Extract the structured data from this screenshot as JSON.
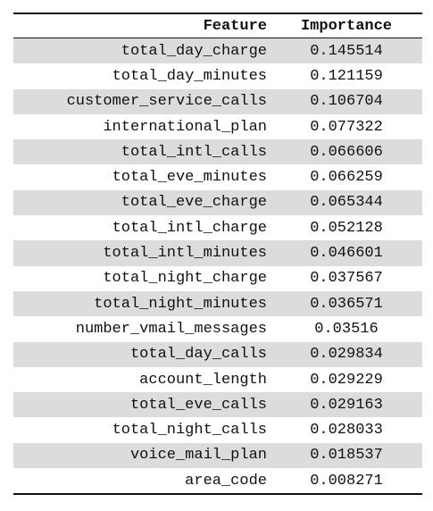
{
  "table": {
    "headers": {
      "feature": "Feature",
      "importance": "Importance"
    },
    "rows": [
      {
        "feature": "total_day_charge",
        "importance": "0.145514"
      },
      {
        "feature": "total_day_minutes",
        "importance": "0.121159"
      },
      {
        "feature": "customer_service_calls",
        "importance": "0.106704"
      },
      {
        "feature": "international_plan",
        "importance": "0.077322"
      },
      {
        "feature": "total_intl_calls",
        "importance": "0.066606"
      },
      {
        "feature": "total_eve_minutes",
        "importance": "0.066259"
      },
      {
        "feature": "total_eve_charge",
        "importance": "0.065344"
      },
      {
        "feature": "total_intl_charge",
        "importance": "0.052128"
      },
      {
        "feature": "total_intl_minutes",
        "importance": "0.046601"
      },
      {
        "feature": "total_night_charge",
        "importance": "0.037567"
      },
      {
        "feature": "total_night_minutes",
        "importance": "0.036571"
      },
      {
        "feature": "number_vmail_messages",
        "importance": "0.03516"
      },
      {
        "feature": "total_day_calls",
        "importance": "0.029834"
      },
      {
        "feature": "account_length",
        "importance": "0.029229"
      },
      {
        "feature": "total_eve_calls",
        "importance": "0.029163"
      },
      {
        "feature": "total_night_calls",
        "importance": "0.028033"
      },
      {
        "feature": "voice_mail_plan",
        "importance": "0.018537"
      },
      {
        "feature": "area_code",
        "importance": "0.008271"
      }
    ]
  },
  "colors": {
    "row_shade": "#dcdcdc",
    "rule": "#111111"
  }
}
